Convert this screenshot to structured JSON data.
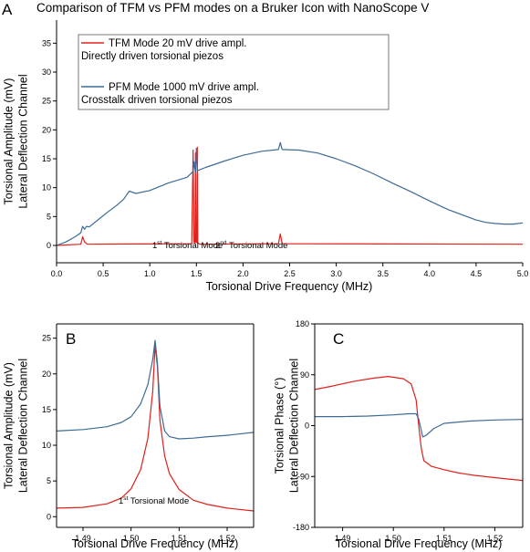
{
  "figure": {
    "title": "Comparison of TFM vs PFM modes on a Bruker Icon with NanoScope V"
  },
  "colors": {
    "red": "#e0201b",
    "blue": "#3d6b98"
  },
  "chart_data": [
    {
      "panel": "A",
      "type": "line",
      "xlabel": "Torsional Drive Frequency (MHz)",
      "ylabel": [
        "Torsional Amplitude (mV)",
        "Lateral Deflection Channel"
      ],
      "xlim": [
        0,
        5.0
      ],
      "ylim": [
        -3,
        39
      ],
      "xticks": [
        "0.0",
        "0.5",
        "1.0",
        "1.5",
        "2.0",
        "2.5",
        "3.0",
        "3.5",
        "4.0",
        "4.5",
        "5.0"
      ],
      "xtick_values": [
        0,
        0.5,
        1.0,
        1.5,
        2.0,
        2.5,
        3.0,
        3.5,
        4.0,
        4.5,
        5.0
      ],
      "yticks": [
        "0",
        "5",
        "10",
        "15",
        "20",
        "25",
        "30",
        "35"
      ],
      "ytick_values": [
        0,
        5,
        10,
        15,
        20,
        25,
        30,
        35
      ],
      "legend": {
        "placement": "top-left",
        "entries": [
          {
            "label": "TFM Mode 20 mV drive ampl.",
            "sublabel": "Directly driven torsional piezos",
            "color": "#e0201b"
          },
          {
            "label": "PFM Mode 1000 mV drive ampl.",
            "sublabel": "Crosstalk driven torsional piezos",
            "color": "#3d6b98"
          }
        ]
      },
      "annotations": [
        {
          "base": "1",
          "sup": "st",
          "rest": " Torsional Mode"
        },
        {
          "base": "2",
          "sup": "nd",
          "rest": " Torsional Mode"
        }
      ],
      "series": [
        {
          "name": "TFM Mode 20 mV drive ampl.",
          "color": "#e0201b",
          "x": [
            0.0,
            0.26,
            0.28,
            0.3,
            0.33,
            1.45,
            1.465,
            1.475,
            1.485,
            1.49,
            1.495,
            1.505,
            1.51,
            1.515,
            1.525,
            1.54,
            2.38,
            2.4,
            2.42,
            5.0
          ],
          "y": [
            0.0,
            0.2,
            1.5,
            0.6,
            0.2,
            0.3,
            16.5,
            0.5,
            0.4,
            16.0,
            0.6,
            0.5,
            17.0,
            0.5,
            0.3,
            0.2,
            0.3,
            2.0,
            0.3,
            0.2
          ]
        },
        {
          "name": "PFM Mode 1000 mV drive ampl.",
          "color": "#3d6b98",
          "x": [
            0.0,
            0.1,
            0.2,
            0.26,
            0.28,
            0.3,
            0.32,
            0.35,
            0.45,
            0.55,
            0.65,
            0.72,
            0.78,
            0.85,
            1.0,
            1.2,
            1.4,
            1.465,
            1.475,
            1.49,
            1.5,
            1.51,
            1.52,
            1.6,
            1.8,
            2.0,
            2.2,
            2.38,
            2.4,
            2.42,
            2.6,
            2.8,
            3.0,
            3.2,
            3.4,
            3.6,
            3.8,
            4.0,
            4.2,
            4.4,
            4.5,
            4.6,
            4.7,
            4.8,
            4.9,
            5.0
          ],
          "y": [
            0.0,
            0.6,
            1.5,
            2.2,
            3.3,
            2.8,
            3.3,
            3.2,
            4.5,
            5.8,
            7.0,
            8.0,
            9.4,
            9.0,
            9.5,
            10.8,
            11.8,
            12.8,
            14.5,
            12.5,
            16.8,
            13.0,
            13.0,
            13.5,
            14.6,
            15.6,
            16.3,
            16.6,
            17.8,
            16.6,
            16.5,
            16.0,
            15.0,
            13.8,
            12.4,
            10.8,
            9.3,
            7.7,
            6.2,
            5.0,
            4.4,
            4.0,
            3.8,
            3.7,
            3.7,
            3.9
          ]
        }
      ]
    },
    {
      "panel": "B",
      "type": "line",
      "xlabel": "Torsional Drive Frequency (MHz)",
      "ylabel": [
        "Torsional Amplitude (mV)",
        "Lateral Deflection Channel"
      ],
      "xlim": [
        1.4845,
        1.5255
      ],
      "ylim": [
        -1.5,
        27
      ],
      "xticks": [
        "1.49",
        "1.50",
        "1.51",
        "1.52"
      ],
      "xtick_values": [
        1.49,
        1.5,
        1.51,
        1.52
      ],
      "yticks": [
        "0",
        "5",
        "10",
        "15",
        "20",
        "25"
      ],
      "ytick_values": [
        0,
        5,
        10,
        15,
        20,
        25
      ],
      "annotations": [
        {
          "base": "1",
          "sup": "st",
          "rest": " Torsional Mode"
        }
      ],
      "series": [
        {
          "name": "TFM",
          "color": "#e0201b",
          "x": [
            1.4845,
            1.49,
            1.495,
            1.498,
            1.5,
            1.502,
            1.5035,
            1.5045,
            1.505,
            1.5055,
            1.506,
            1.507,
            1.508,
            1.51,
            1.513,
            1.516,
            1.52,
            1.5255
          ],
          "y": [
            1.2,
            1.3,
            1.8,
            2.6,
            3.9,
            6.6,
            11.0,
            17.5,
            24.0,
            21.0,
            13.5,
            8.5,
            6.0,
            3.8,
            2.3,
            1.7,
            1.2,
            0.8
          ]
        },
        {
          "name": "PFM",
          "color": "#3d6b98",
          "x": [
            1.4845,
            1.49,
            1.495,
            1.498,
            1.5,
            1.502,
            1.5035,
            1.5045,
            1.505,
            1.5055,
            1.506,
            1.507,
            1.508,
            1.51,
            1.513,
            1.516,
            1.52,
            1.5255
          ],
          "y": [
            12.0,
            12.2,
            12.6,
            13.2,
            14.0,
            15.8,
            18.5,
            22.0,
            24.7,
            21.5,
            15.5,
            12.0,
            11.2,
            10.9,
            11.0,
            11.2,
            11.4,
            11.8
          ]
        }
      ]
    },
    {
      "panel": "C",
      "type": "line",
      "xlabel": "Torsional Drive Frequency (MHz)",
      "ylabel": [
        "Torsional Phase (°)",
        "Lateral Deflection Channel"
      ],
      "xlim": [
        1.4845,
        1.5255
      ],
      "ylim": [
        -180,
        180
      ],
      "xticks": [
        "1.49",
        "1.50",
        "1.51",
        "1.52"
      ],
      "xtick_values": [
        1.49,
        1.5,
        1.51,
        1.52
      ],
      "yticks": [
        "180",
        "90",
        "0",
        "-90",
        "-180"
      ],
      "ytick_values": [
        180,
        90,
        0,
        -90,
        -180
      ],
      "series": [
        {
          "name": "TFM",
          "color": "#e0201b",
          "x": [
            1.4845,
            1.488,
            1.492,
            1.496,
            1.499,
            1.502,
            1.5035,
            1.5045,
            1.505,
            1.5055,
            1.506,
            1.5075,
            1.51,
            1.513,
            1.516,
            1.52,
            1.5255
          ],
          "y": [
            64,
            70,
            78,
            84,
            87,
            83,
            74,
            45,
            0,
            -40,
            -62,
            -72,
            -78,
            -84,
            -88,
            -92,
            -97
          ]
        },
        {
          "name": "PFM",
          "color": "#3d6b98",
          "x": [
            1.4845,
            1.49,
            1.495,
            1.5,
            1.503,
            1.5045,
            1.505,
            1.5058,
            1.5065,
            1.508,
            1.51,
            1.515,
            1.52,
            1.5255
          ],
          "y": [
            16,
            16,
            17,
            19,
            21,
            21,
            12,
            -20,
            -17,
            -5,
            4,
            8,
            10,
            11
          ]
        }
      ]
    }
  ]
}
